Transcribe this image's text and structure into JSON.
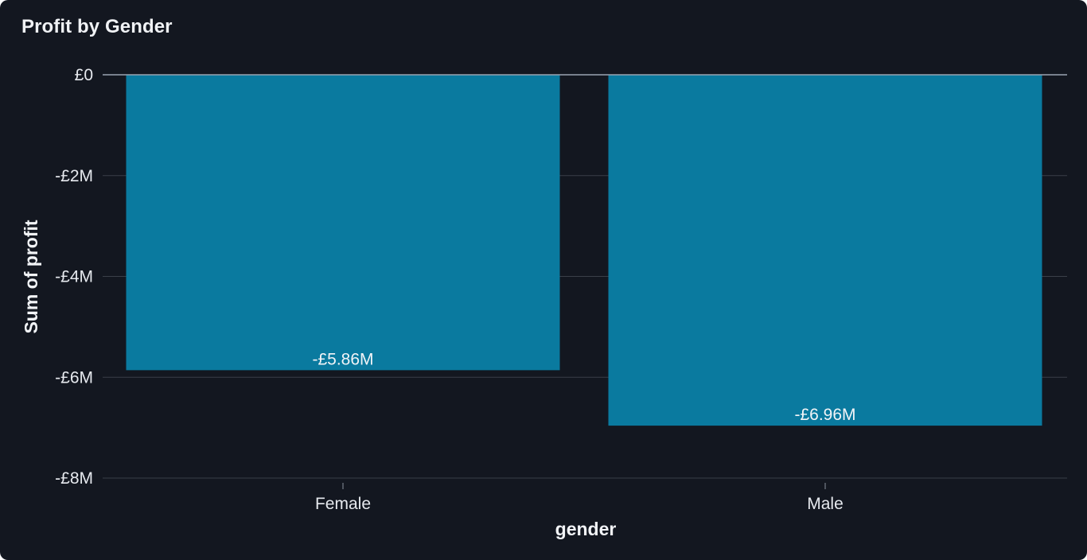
{
  "card": {
    "title": "Profit by Gender"
  },
  "colors": {
    "background": "#131720",
    "bar": "#0a7a9f",
    "grid": "#3a3f48",
    "zero_line": "#9aa3b1",
    "text": "#e6e9ee"
  },
  "chart_data": {
    "type": "bar",
    "title": "Profit by Gender",
    "xlabel": "gender",
    "ylabel": "Sum of profit",
    "categories": [
      "Female",
      "Male"
    ],
    "values": [
      -5860000,
      -6960000
    ],
    "data_labels": [
      "-£5.86M",
      "-£6.96M"
    ],
    "ylim": [
      -8000000,
      0
    ],
    "y_ticks": [
      0,
      -2000000,
      -4000000,
      -6000000,
      -8000000
    ],
    "y_tick_labels": [
      "£0",
      "-£2M",
      "-£4M",
      "-£6M",
      "-£8M"
    ],
    "grid": true,
    "legend": "none"
  }
}
